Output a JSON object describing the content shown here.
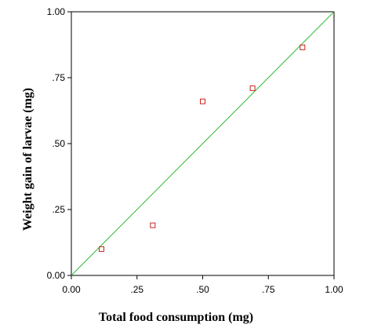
{
  "chart_data": {
    "type": "scatter",
    "title": "",
    "xlabel": "Total food consumption (mg)",
    "ylabel": "Weight gain of larvae (mg)",
    "xlim": [
      0,
      1
    ],
    "ylim": [
      0,
      1
    ],
    "x_ticks": [
      {
        "value": 0,
        "label": "0.00"
      },
      {
        "value": 0.25,
        "label": ".25"
      },
      {
        "value": 0.5,
        "label": ".50"
      },
      {
        "value": 0.75,
        "label": ".75"
      },
      {
        "value": 1,
        "label": "1.00"
      }
    ],
    "y_ticks": [
      {
        "value": 0,
        "label": "0.00"
      },
      {
        "value": 0.25,
        "label": ".25"
      },
      {
        "value": 0.5,
        "label": ".50"
      },
      {
        "value": 0.75,
        "label": ".75"
      },
      {
        "value": 1,
        "label": "1.00"
      }
    ],
    "grid": false,
    "legend": "none",
    "series": [
      {
        "marker": "open-square",
        "color": "#cc2222",
        "x": [
          0.115,
          0.31,
          0.5,
          0.69,
          0.88
        ],
        "y": [
          0.1,
          0.19,
          0.66,
          0.71,
          0.865
        ]
      }
    ],
    "reference_line": {
      "type": "identity",
      "from": [
        0,
        0
      ],
      "to": [
        1,
        1
      ],
      "color": "#33bb33"
    },
    "frame_color": "#000000"
  }
}
